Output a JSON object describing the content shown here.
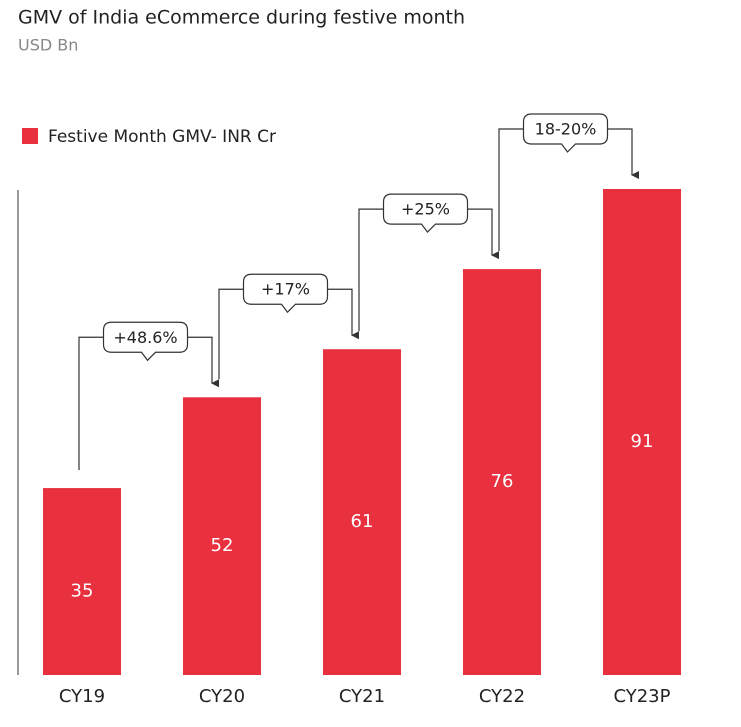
{
  "chart_data": {
    "type": "bar",
    "title": "GMV of India eCommerce during festive month",
    "subtitle": "USD Bn",
    "legend": "Festive Month GMV- INR Cr",
    "categories": [
      "CY19",
      "CY20",
      "CY21",
      "CY22",
      "CY23P"
    ],
    "values": [
      35,
      52,
      61,
      76,
      91
    ],
    "color": "#e8303f",
    "annotations": [
      "+48.6%",
      "+17%",
      "+25%",
      "18-20%"
    ]
  }
}
